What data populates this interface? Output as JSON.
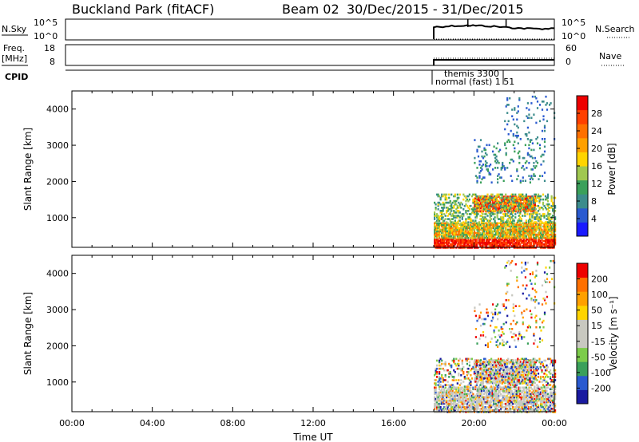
{
  "header": {
    "station": "Buckland Park (fitACF)",
    "beam": "Beam 02",
    "dates": "30/Dec/2015 - 31/Dec/2015"
  },
  "labels": {
    "nsky": "N.Sky",
    "nsearch": "N.Search",
    "freq_line1": "Freq.",
    "freq_line2": "[MHz]",
    "cpid": "CPID",
    "nave": "Nave",
    "cpid_name": "themis 3300",
    "cpid_mode": "normal (fast) 1 51"
  },
  "chart_data": [
    {
      "type": "line",
      "name": "noise-panel",
      "left_ticks": [
        "10^5",
        "10^0"
      ],
      "right_ticks": [
        "10^5",
        "10^0"
      ],
      "left_label": "N.Sky",
      "right_label": "N.Search",
      "data_start_hour": 18.0,
      "data_end_hour": 24.0,
      "trace_level_log10": 4.0
    },
    {
      "type": "line",
      "name": "freq-nave-panel",
      "left_ticks": [
        "18",
        "8"
      ],
      "right_ticks": [
        "60",
        "0"
      ],
      "left_label": "Freq. [MHz]",
      "right_label": "Nave",
      "data_start_hour": 18.0,
      "data_end_hour": 24.0,
      "freq_mhz": 10,
      "nave": 5
    },
    {
      "type": "heatmap",
      "name": "power-panel",
      "ylabel": "Slant Range [km]",
      "yticks": [
        1000,
        2000,
        3000,
        4000
      ],
      "ylim": [
        180,
        4500
      ],
      "xlim": [
        0,
        24
      ],
      "colorbar_label": "Power [dB]",
      "colorbar_ticks": [
        "4",
        "8",
        "12",
        "16",
        "20",
        "24",
        "28"
      ],
      "colorbar_colors": [
        "#1a1aff",
        "#2a5ad0",
        "#3c8c8c",
        "#3aa05a",
        "#a0c850",
        "#ffd400",
        "#ffa000",
        "#ff7000",
        "#ff4000",
        "#ee0000"
      ]
    },
    {
      "type": "heatmap",
      "name": "velocity-panel",
      "ylabel": "Slant Range [km]",
      "yticks": [
        1000,
        2000,
        3000,
        4000
      ],
      "ylim": [
        180,
        4500
      ],
      "xlim": [
        0,
        24
      ],
      "xlabel": "Time UT",
      "xticks": [
        "00:00",
        "04:00",
        "08:00",
        "12:00",
        "16:00",
        "20:00",
        "00:00"
      ],
      "colorbar_label": "Velocity [m s⁻¹]",
      "colorbar_ticks": [
        "200",
        "100",
        "50",
        "15",
        "-15",
        "-50",
        "-100",
        "-200"
      ],
      "colorbar_colors": [
        "#1a1aa0",
        "#2a5ad0",
        "#3aa05a",
        "#7ccc4a",
        "#c8c8c0",
        "#c8c8c0",
        "#ffd400",
        "#ffa000",
        "#ff7000",
        "#ee0000"
      ]
    }
  ]
}
